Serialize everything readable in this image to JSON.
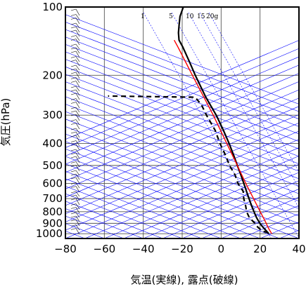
{
  "chart_data": {
    "type": "skew-t",
    "xlabel": "気温(実線), 露点(破線)",
    "ylabel": "気圧(hPa)",
    "xlim": [
      -80,
      40
    ],
    "ylim_hpa": [
      1050,
      100
    ],
    "x_ticks": [
      "−80",
      "−60",
      "−40",
      "−20",
      "0",
      "20",
      "40"
    ],
    "y_ticks": [
      "100",
      "200",
      "300",
      "400",
      "500",
      "600",
      "700",
      "800",
      "900",
      "1000"
    ],
    "mixing_ratio_labels": [
      "1",
      "5",
      "10",
      "15",
      "20g"
    ],
    "colors": {
      "temperature": "#000000",
      "dewpoint": "#000000",
      "parcel": "#ff0000",
      "reference_lines": "#0000ff",
      "grid": "#555555"
    },
    "series": [
      {
        "role": "temperature",
        "line": "solid",
        "points": [
          {
            "p": 1000,
            "t": 24.5
          },
          {
            "p": 975,
            "t": 22.8
          },
          {
            "p": 950,
            "t": 21.0
          },
          {
            "p": 925,
            "t": 19.2
          },
          {
            "p": 900,
            "t": 17.5
          },
          {
            "p": 850,
            "t": 14.5
          },
          {
            "p": 800,
            "t": 11.8
          },
          {
            "p": 750,
            "t": 9.0
          },
          {
            "p": 700,
            "t": 6.2
          },
          {
            "p": 650,
            "t": 3.2
          },
          {
            "p": 600,
            "t": 0.0
          },
          {
            "p": 550,
            "t": -3.5
          },
          {
            "p": 500,
            "t": -7.5
          },
          {
            "p": 450,
            "t": -11.8
          },
          {
            "p": 400,
            "t": -16.8
          },
          {
            "p": 350,
            "t": -22.8
          },
          {
            "p": 300,
            "t": -30.0
          },
          {
            "p": 250,
            "t": -39.5
          },
          {
            "p": 200,
            "t": -50.0
          },
          {
            "p": 175,
            "t": -56.0
          },
          {
            "p": 150,
            "t": -63.0
          },
          {
            "p": 140,
            "t": -66.5
          },
          {
            "p": 130,
            "t": -68.5
          },
          {
            "p": 120,
            "t": -70.0
          },
          {
            "p": 110,
            "t": -71.5
          },
          {
            "p": 100,
            "t": -72.0
          }
        ]
      },
      {
        "role": "dewpoint",
        "line": "dashed",
        "points": [
          {
            "p": 990,
            "t": 24.0
          },
          {
            "p": 975,
            "t": 20.8
          },
          {
            "p": 950,
            "t": 18.5
          },
          {
            "p": 925,
            "t": 16.5
          },
          {
            "p": 900,
            "t": 15.0
          },
          {
            "p": 850,
            "t": 10.8
          },
          {
            "p": 800,
            "t": 8.0
          },
          {
            "p": 750,
            "t": 6.0
          },
          {
            "p": 700,
            "t": 3.5
          },
          {
            "p": 650,
            "t": 1.5
          },
          {
            "p": 600,
            "t": -3.0
          },
          {
            "p": 550,
            "t": -6.5
          },
          {
            "p": 500,
            "t": -11.5
          },
          {
            "p": 450,
            "t": -16.0
          },
          {
            "p": 400,
            "t": -21.5
          },
          {
            "p": 350,
            "t": -27.0
          },
          {
            "p": 300,
            "t": -35.0
          },
          {
            "p": 270,
            "t": -40.0
          },
          {
            "p": 250,
            "t": -45.0
          },
          {
            "p": 247,
            "t": -90.0
          }
        ]
      },
      {
        "role": "parcel",
        "line": "solid",
        "points": [
          {
            "p": 1000,
            "t": 26.0
          },
          {
            "p": 950,
            "t": 23.3
          },
          {
            "p": 900,
            "t": 20.8
          },
          {
            "p": 850,
            "t": 18.0
          },
          {
            "p": 800,
            "t": 15.0
          },
          {
            "p": 700,
            "t": 8.5
          },
          {
            "p": 600,
            "t": 1.0
          },
          {
            "p": 500,
            "t": -7.5
          },
          {
            "p": 400,
            "t": -18.0
          },
          {
            "p": 300,
            "t": -31.5
          },
          {
            "p": 250,
            "t": -40.5
          },
          {
            "p": 200,
            "t": -51.5
          },
          {
            "p": 175,
            "t": -58.0
          },
          {
            "p": 150,
            "t": -65.5
          },
          {
            "p": 140,
            "t": -69.0
          }
        ]
      }
    ]
  }
}
